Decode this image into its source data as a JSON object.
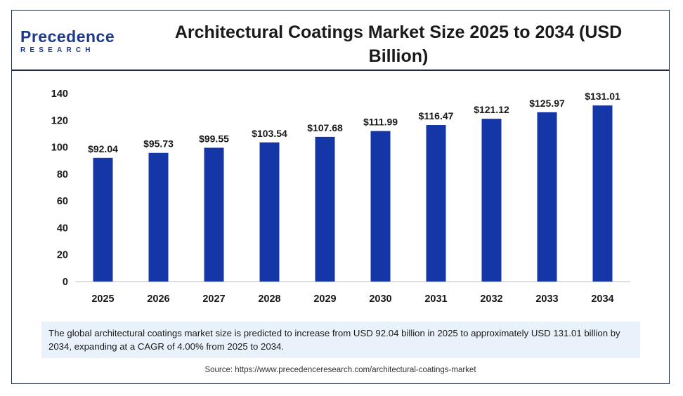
{
  "brand": {
    "name": "Precedence",
    "sub": "RESEARCH"
  },
  "title": "Architectural Coatings Market Size 2025 to 2034 (USD Billion)",
  "colors": {
    "bar": "#1536a6",
    "frame": "#1f2a44",
    "note_bg": "#e9f1fb"
  },
  "chart_data": {
    "type": "bar",
    "categories": [
      "2025",
      "2026",
      "2027",
      "2028",
      "2029",
      "2030",
      "2031",
      "2032",
      "2033",
      "2034"
    ],
    "values": [
      92.04,
      95.73,
      99.55,
      103.54,
      107.68,
      111.99,
      116.47,
      121.12,
      125.97,
      131.01
    ],
    "data_labels": [
      "$92.04",
      "$95.73",
      "$99.55",
      "$103.54",
      "$107.68",
      "$111.99",
      "$116.47",
      "$121.12",
      "$125.97",
      "$131.01"
    ],
    "y_ticks": [
      "0",
      "20",
      "40",
      "60",
      "80",
      "100",
      "120",
      "140"
    ],
    "ylim": [
      0,
      140
    ],
    "grid": false,
    "legend": "none"
  },
  "note": "The global architectural coatings market size is predicted to increase from USD 92.04 billion in 2025 to approximately USD 131.01 billion by 2034, expanding at a CAGR of 4.00% from 2025 to 2034.",
  "source": "Source: https://www.precedenceresearch.com/architectural-coatings-market"
}
